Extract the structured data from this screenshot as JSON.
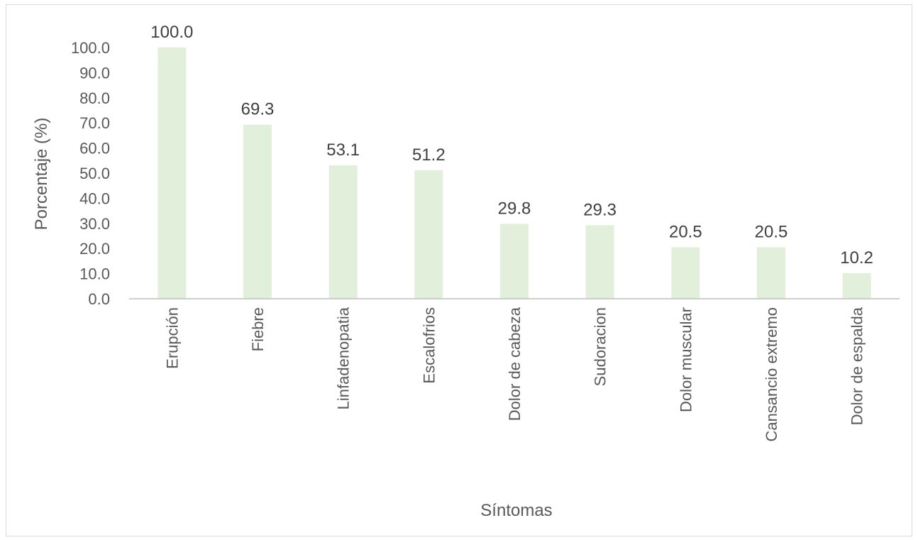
{
  "chart_data": {
    "type": "bar",
    "title": "",
    "xlabel": "Síntomas",
    "ylabel": "Porcentaje (%)",
    "categories": [
      "Erupción",
      "Fiebre",
      "Linfadenopatia",
      "Escalofrios",
      "Dolor de cabeza",
      "Sudoracion",
      "Dolor muscular",
      "Cansancio extremo",
      "Dolor de espalda"
    ],
    "values": [
      100.0,
      69.3,
      53.1,
      51.2,
      29.8,
      29.3,
      20.5,
      20.5,
      10.2
    ],
    "data_labels": [
      "100.0",
      "69.3",
      "53.1",
      "51.2",
      "29.8",
      "29.3",
      "20.5",
      "20.5",
      "10.2"
    ],
    "ylim": [
      0,
      100
    ],
    "yticks": [
      "0.0",
      "10.0",
      "20.0",
      "30.0",
      "40.0",
      "50.0",
      "60.0",
      "70.0",
      "80.0",
      "90.0",
      "100.0"
    ],
    "grid": false,
    "legend": "none",
    "bar_color": "#e2efda"
  }
}
